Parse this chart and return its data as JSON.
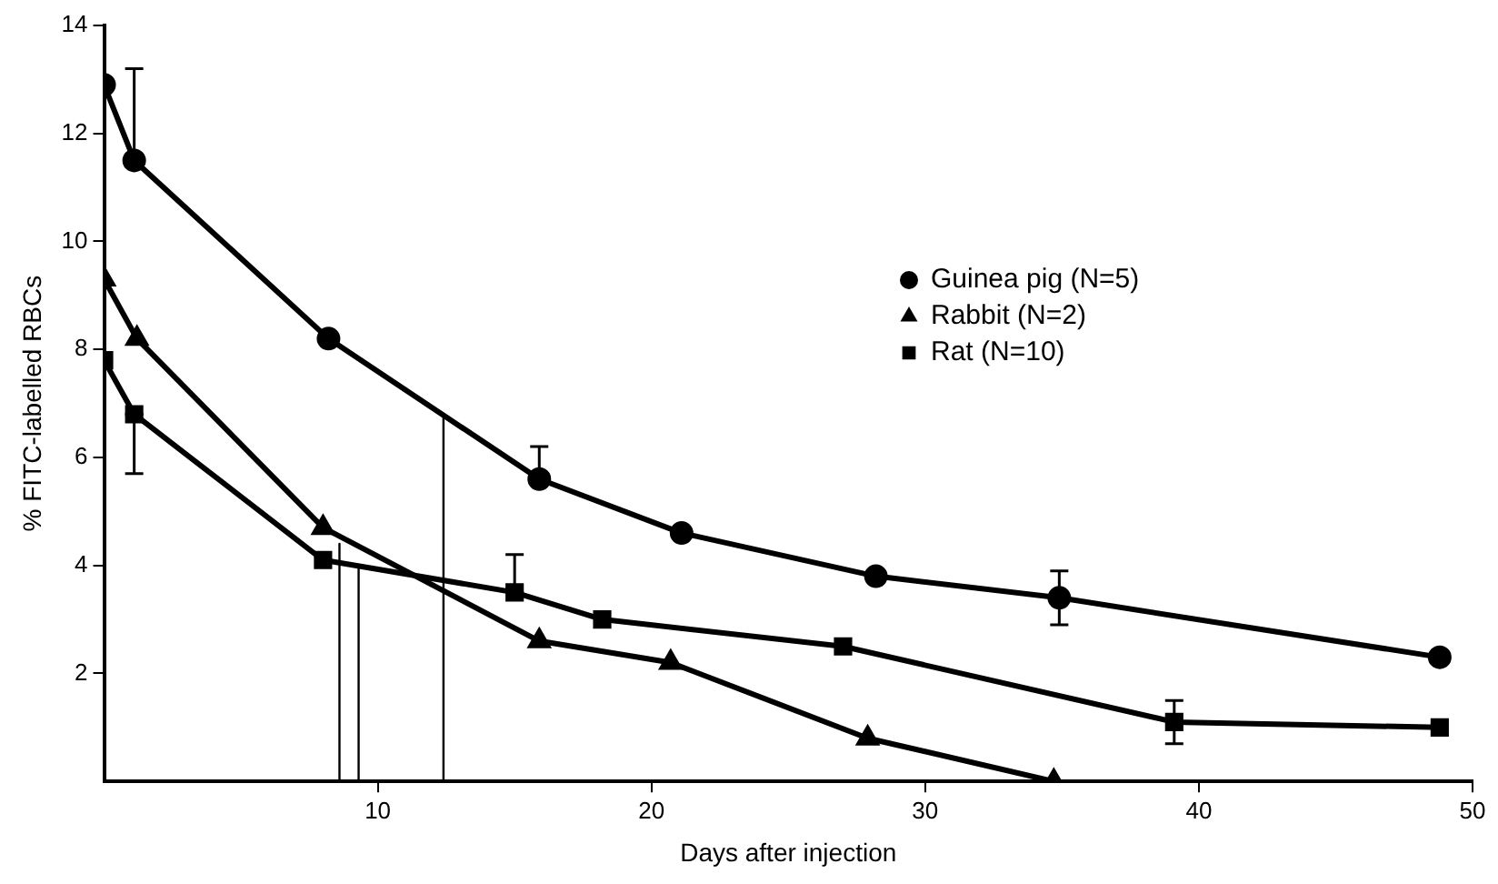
{
  "chart_data": {
    "type": "line",
    "xlabel": "Days after injection",
    "ylabel": "% FITC-labelled RBCs",
    "xlim": [
      0,
      50
    ],
    "xticks": [
      10,
      20,
      30,
      40,
      50
    ],
    "ylim": [
      0,
      14
    ],
    "yticks": [
      2,
      4,
      6,
      8,
      10,
      12,
      14
    ],
    "grid": false,
    "legend": "top right",
    "line_style": "solid",
    "series": [
      {
        "name": "Guinea pig (N=5)",
        "color": "#000000",
        "marker": "circle",
        "x": [
          0,
          1.1,
          8.2,
          15.9,
          21.1,
          28.2,
          34.9,
          48.8
        ],
        "values": [
          12.9,
          11.5,
          8.2,
          5.6,
          4.6,
          3.8,
          3.4,
          2.3
        ],
        "errors": [
          null,
          [
            11.5,
            13.2
          ],
          null,
          [
            5.6,
            6.2
          ],
          null,
          null,
          0.5,
          null
        ]
      },
      {
        "name": "Rabbit (N=2)",
        "color": "#000000",
        "marker": "triangle",
        "x": [
          0,
          1.2,
          8.0,
          15.9,
          20.7,
          27.9,
          34.7
        ],
        "values": [
          9.3,
          8.2,
          4.7,
          2.6,
          2.2,
          0.8,
          0
        ]
      },
      {
        "name": "Rat (N=10)",
        "color": "#000000",
        "marker": "square",
        "x": [
          0,
          1.1,
          8.0,
          15.0,
          18.2,
          27.0,
          39.1,
          48.8
        ],
        "values": [
          7.8,
          6.8,
          4.1,
          3.5,
          3.0,
          2.5,
          1.1,
          1.0
        ],
        "errors": [
          null,
          [
            5.7,
            6.8
          ],
          null,
          [
            3.5,
            4.2
          ],
          null,
          null,
          0.4,
          null
        ]
      },
      {
        "color": "#000000",
        "marker": "none",
        "x": [
          8.6,
          8.6
        ],
        "values": [
          0,
          4.4
        ]
      },
      {
        "color": "#000000",
        "marker": "none",
        "x": [
          9.3,
          9.3
        ],
        "values": [
          0,
          4.0
        ]
      },
      {
        "color": "#000000",
        "marker": "none",
        "x": [
          12.4,
          12.4
        ],
        "values": [
          0,
          6.8
        ]
      }
    ]
  }
}
